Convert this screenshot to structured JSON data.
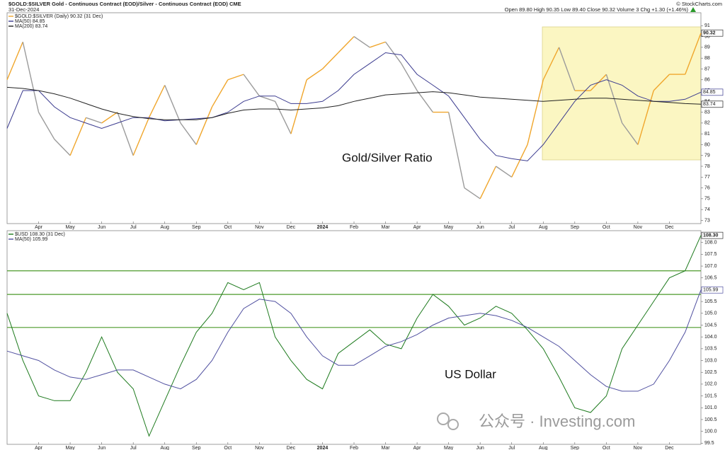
{
  "header": {
    "title": "$GOLD:$SILVER Gold - Continuous Contract (EOD)/Silver - Continuous Contract (EOD) CME",
    "date": "31-Dec-2024",
    "quote": "Open 89.80 High 90.35 Low 89.40 Close 90.32 Volume 3 Chg +1.30 (+1.46%)",
    "credit": "© StockCharts.com"
  },
  "watermark": "公众号 · Investing.com",
  "chart_data": [
    {
      "type": "line",
      "annotation": "Gold/Silver Ratio",
      "x_labels": [
        "Apr",
        "May",
        "Jun",
        "Jul",
        "Aug",
        "Sep",
        "Oct",
        "Nov",
        "Dec",
        "2024",
        "Feb",
        "Mar",
        "Apr",
        "May",
        "Jun",
        "Jul",
        "Aug",
        "Sep",
        "Oct",
        "Nov",
        "Dec"
      ],
      "ylim": [
        72.7,
        92.2
      ],
      "yticks": [
        73,
        74,
        75,
        76,
        77,
        78,
        79,
        80,
        81,
        82,
        83,
        84,
        85,
        86,
        87,
        88,
        89,
        90,
        91
      ],
      "grid": false,
      "series": [
        {
          "name": "$GOLD:$SILVER (Daily) 90.32 (31 Dec)",
          "up_color": "#f0a62c",
          "down_color": "#9b9b9b",
          "flag_label": "90.32",
          "values": [
            86,
            89.5,
            83,
            80.5,
            79,
            82.5,
            82,
            83,
            79,
            82.5,
            85.5,
            82,
            80,
            83.5,
            86,
            86.5,
            84.5,
            84,
            81,
            86,
            87,
            88.5,
            90,
            89,
            89.5,
            87.5,
            85,
            83,
            83,
            76,
            75,
            78,
            77,
            80,
            86,
            89,
            85,
            85,
            86.5,
            82,
            80,
            85,
            86.5,
            86.5,
            90.32
          ]
        },
        {
          "name": "MA(50) 84.85",
          "color": "#3b3b8f",
          "flag_label": "84.85",
          "values": [
            81.5,
            85,
            85,
            83.5,
            82.5,
            82,
            81.5,
            82,
            82.5,
            82.5,
            82.2,
            82.3,
            82.4,
            82.5,
            83,
            84,
            84.5,
            84.5,
            83.8,
            83.8,
            84,
            85,
            86.5,
            87.5,
            88.5,
            88.3,
            86.5,
            85.5,
            84.5,
            82.5,
            80.5,
            79,
            78.7,
            78.5,
            80,
            82,
            84,
            85.5,
            86,
            85.5,
            84.5,
            84,
            84,
            84.2,
            84.85
          ]
        },
        {
          "name": "MA(200) 83.74",
          "color": "#222222",
          "flag_label": "83.74",
          "values": [
            85.3,
            85.2,
            85,
            84.7,
            84.3,
            83.8,
            83.3,
            82.9,
            82.6,
            82.4,
            82.3,
            82.3,
            82.3,
            82.5,
            82.9,
            83.2,
            83.3,
            83.3,
            83.2,
            83.3,
            83.4,
            83.6,
            84,
            84.3,
            84.6,
            84.7,
            84.8,
            84.9,
            84.8,
            84.6,
            84.4,
            84.3,
            84.2,
            84.1,
            84,
            84.1,
            84.2,
            84.3,
            84.3,
            84.2,
            84.1,
            84,
            83.9,
            83.8,
            83.74
          ]
        }
      ]
    },
    {
      "type": "line",
      "annotation": "US Dollar",
      "x_labels": [
        "Apr",
        "May",
        "Jun",
        "Jul",
        "Aug",
        "Sep",
        "Oct",
        "Nov",
        "Dec",
        "2024",
        "Feb",
        "Mar",
        "Apr",
        "May",
        "Jun",
        "Jul",
        "Aug",
        "Sep",
        "Oct",
        "Nov",
        "Dec"
      ],
      "ylim": [
        99.45,
        108.5
      ],
      "yticks": [
        99.5,
        {
          "value": 100,
          "label": "100.0"
        },
        100.5,
        {
          "value": 101,
          "label": "101.0"
        },
        101.5,
        {
          "value": 102,
          "label": "102.0"
        },
        102.5,
        {
          "value": 103,
          "label": "103.0"
        },
        103.5,
        {
          "value": 104,
          "label": "104.0"
        },
        104.5,
        {
          "value": 105,
          "label": "105.0"
        },
        105.5,
        {
          "value": 106,
          "label": "106.0"
        },
        106.5,
        {
          "value": 107,
          "label": "107.0"
        },
        107.5,
        {
          "value": 108,
          "label": "108.0"
        }
      ],
      "grid": false,
      "hlines": [
        106.8,
        105.8,
        104.4
      ],
      "hline_color": "#4c9a2a",
      "series": [
        {
          "name": "$USD 108.30 (31 Dec)",
          "color": "#1d7a1d",
          "flag_label": "108.30",
          "values": [
            105,
            103,
            101.5,
            101.3,
            101.3,
            102.5,
            104,
            102.5,
            101.8,
            99.8,
            101.3,
            102.8,
            104.2,
            105,
            106.3,
            106,
            106.3,
            104,
            103,
            102.2,
            101.8,
            103.3,
            103.8,
            104.3,
            103.7,
            103.5,
            104.8,
            105.8,
            105.3,
            104.5,
            104.8,
            105.3,
            105,
            104.3,
            103.5,
            102.3,
            101,
            100.8,
            101.5,
            103.5,
            104.5,
            105.5,
            106.5,
            106.8,
            108.3
          ]
        },
        {
          "name": "MA(50) 105.99",
          "color": "#5050a0",
          "flag_label": "105.99",
          "values": [
            103.4,
            103.2,
            103,
            102.6,
            102.3,
            102.2,
            102.4,
            102.6,
            102.6,
            102.3,
            102,
            101.8,
            102.2,
            103,
            104.2,
            105.2,
            105.6,
            105.5,
            105,
            104,
            103.2,
            102.8,
            102.8,
            103.2,
            103.6,
            103.8,
            104.1,
            104.5,
            104.8,
            104.9,
            105,
            104.9,
            104.7,
            104.4,
            104,
            103.6,
            103,
            102.4,
            101.9,
            101.7,
            101.7,
            102,
            103,
            104.2,
            105.99
          ]
        }
      ]
    }
  ]
}
